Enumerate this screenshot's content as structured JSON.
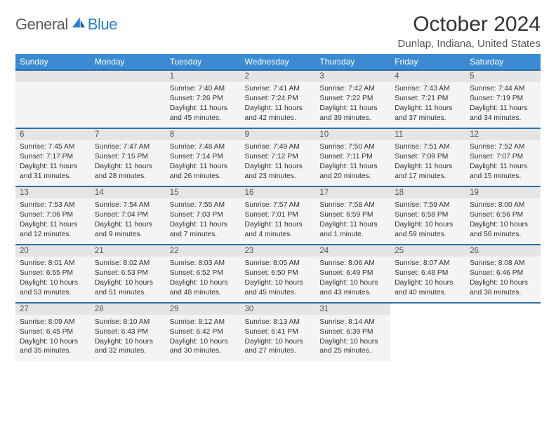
{
  "logo": {
    "text1": "General",
    "text2": "Blue"
  },
  "title": "October 2024",
  "location": "Dunlap, Indiana, United States",
  "colors": {
    "header_bg": "#3b8bd4",
    "header_text": "#ffffff",
    "row_divider": "#2a6fa8",
    "daynum_bg": "#e5e5e5",
    "detail_bg": "#f4f4f4",
    "text": "#333333",
    "logo_gray": "#5a5a5a",
    "logo_blue": "#2a7fc7"
  },
  "day_headers": [
    "Sunday",
    "Monday",
    "Tuesday",
    "Wednesday",
    "Thursday",
    "Friday",
    "Saturday"
  ],
  "weeks": [
    [
      null,
      null,
      {
        "n": "1",
        "sr": "Sunrise: 7:40 AM",
        "ss": "Sunset: 7:26 PM",
        "d1": "Daylight: 11 hours",
        "d2": "and 45 minutes."
      },
      {
        "n": "2",
        "sr": "Sunrise: 7:41 AM",
        "ss": "Sunset: 7:24 PM",
        "d1": "Daylight: 11 hours",
        "d2": "and 42 minutes."
      },
      {
        "n": "3",
        "sr": "Sunrise: 7:42 AM",
        "ss": "Sunset: 7:22 PM",
        "d1": "Daylight: 11 hours",
        "d2": "and 39 minutes."
      },
      {
        "n": "4",
        "sr": "Sunrise: 7:43 AM",
        "ss": "Sunset: 7:21 PM",
        "d1": "Daylight: 11 hours",
        "d2": "and 37 minutes."
      },
      {
        "n": "5",
        "sr": "Sunrise: 7:44 AM",
        "ss": "Sunset: 7:19 PM",
        "d1": "Daylight: 11 hours",
        "d2": "and 34 minutes."
      }
    ],
    [
      {
        "n": "6",
        "sr": "Sunrise: 7:45 AM",
        "ss": "Sunset: 7:17 PM",
        "d1": "Daylight: 11 hours",
        "d2": "and 31 minutes."
      },
      {
        "n": "7",
        "sr": "Sunrise: 7:47 AM",
        "ss": "Sunset: 7:15 PM",
        "d1": "Daylight: 11 hours",
        "d2": "and 28 minutes."
      },
      {
        "n": "8",
        "sr": "Sunrise: 7:48 AM",
        "ss": "Sunset: 7:14 PM",
        "d1": "Daylight: 11 hours",
        "d2": "and 26 minutes."
      },
      {
        "n": "9",
        "sr": "Sunrise: 7:49 AM",
        "ss": "Sunset: 7:12 PM",
        "d1": "Daylight: 11 hours",
        "d2": "and 23 minutes."
      },
      {
        "n": "10",
        "sr": "Sunrise: 7:50 AM",
        "ss": "Sunset: 7:11 PM",
        "d1": "Daylight: 11 hours",
        "d2": "and 20 minutes."
      },
      {
        "n": "11",
        "sr": "Sunrise: 7:51 AM",
        "ss": "Sunset: 7:09 PM",
        "d1": "Daylight: 11 hours",
        "d2": "and 17 minutes."
      },
      {
        "n": "12",
        "sr": "Sunrise: 7:52 AM",
        "ss": "Sunset: 7:07 PM",
        "d1": "Daylight: 11 hours",
        "d2": "and 15 minutes."
      }
    ],
    [
      {
        "n": "13",
        "sr": "Sunrise: 7:53 AM",
        "ss": "Sunset: 7:06 PM",
        "d1": "Daylight: 11 hours",
        "d2": "and 12 minutes."
      },
      {
        "n": "14",
        "sr": "Sunrise: 7:54 AM",
        "ss": "Sunset: 7:04 PM",
        "d1": "Daylight: 11 hours",
        "d2": "and 9 minutes."
      },
      {
        "n": "15",
        "sr": "Sunrise: 7:55 AM",
        "ss": "Sunset: 7:03 PM",
        "d1": "Daylight: 11 hours",
        "d2": "and 7 minutes."
      },
      {
        "n": "16",
        "sr": "Sunrise: 7:57 AM",
        "ss": "Sunset: 7:01 PM",
        "d1": "Daylight: 11 hours",
        "d2": "and 4 minutes."
      },
      {
        "n": "17",
        "sr": "Sunrise: 7:58 AM",
        "ss": "Sunset: 6:59 PM",
        "d1": "Daylight: 11 hours",
        "d2": "and 1 minute."
      },
      {
        "n": "18",
        "sr": "Sunrise: 7:59 AM",
        "ss": "Sunset: 6:58 PM",
        "d1": "Daylight: 10 hours",
        "d2": "and 59 minutes."
      },
      {
        "n": "19",
        "sr": "Sunrise: 8:00 AM",
        "ss": "Sunset: 6:56 PM",
        "d1": "Daylight: 10 hours",
        "d2": "and 56 minutes."
      }
    ],
    [
      {
        "n": "20",
        "sr": "Sunrise: 8:01 AM",
        "ss": "Sunset: 6:55 PM",
        "d1": "Daylight: 10 hours",
        "d2": "and 53 minutes."
      },
      {
        "n": "21",
        "sr": "Sunrise: 8:02 AM",
        "ss": "Sunset: 6:53 PM",
        "d1": "Daylight: 10 hours",
        "d2": "and 51 minutes."
      },
      {
        "n": "22",
        "sr": "Sunrise: 8:03 AM",
        "ss": "Sunset: 6:52 PM",
        "d1": "Daylight: 10 hours",
        "d2": "and 48 minutes."
      },
      {
        "n": "23",
        "sr": "Sunrise: 8:05 AM",
        "ss": "Sunset: 6:50 PM",
        "d1": "Daylight: 10 hours",
        "d2": "and 45 minutes."
      },
      {
        "n": "24",
        "sr": "Sunrise: 8:06 AM",
        "ss": "Sunset: 6:49 PM",
        "d1": "Daylight: 10 hours",
        "d2": "and 43 minutes."
      },
      {
        "n": "25",
        "sr": "Sunrise: 8:07 AM",
        "ss": "Sunset: 6:48 PM",
        "d1": "Daylight: 10 hours",
        "d2": "and 40 minutes."
      },
      {
        "n": "26",
        "sr": "Sunrise: 8:08 AM",
        "ss": "Sunset: 6:46 PM",
        "d1": "Daylight: 10 hours",
        "d2": "and 38 minutes."
      }
    ],
    [
      {
        "n": "27",
        "sr": "Sunrise: 8:09 AM",
        "ss": "Sunset: 6:45 PM",
        "d1": "Daylight: 10 hours",
        "d2": "and 35 minutes."
      },
      {
        "n": "28",
        "sr": "Sunrise: 8:10 AM",
        "ss": "Sunset: 6:43 PM",
        "d1": "Daylight: 10 hours",
        "d2": "and 32 minutes."
      },
      {
        "n": "29",
        "sr": "Sunrise: 8:12 AM",
        "ss": "Sunset: 6:42 PM",
        "d1": "Daylight: 10 hours",
        "d2": "and 30 minutes."
      },
      {
        "n": "30",
        "sr": "Sunrise: 8:13 AM",
        "ss": "Sunset: 6:41 PM",
        "d1": "Daylight: 10 hours",
        "d2": "and 27 minutes."
      },
      {
        "n": "31",
        "sr": "Sunrise: 8:14 AM",
        "ss": "Sunset: 6:39 PM",
        "d1": "Daylight: 10 hours",
        "d2": "and 25 minutes."
      },
      null,
      null
    ]
  ]
}
